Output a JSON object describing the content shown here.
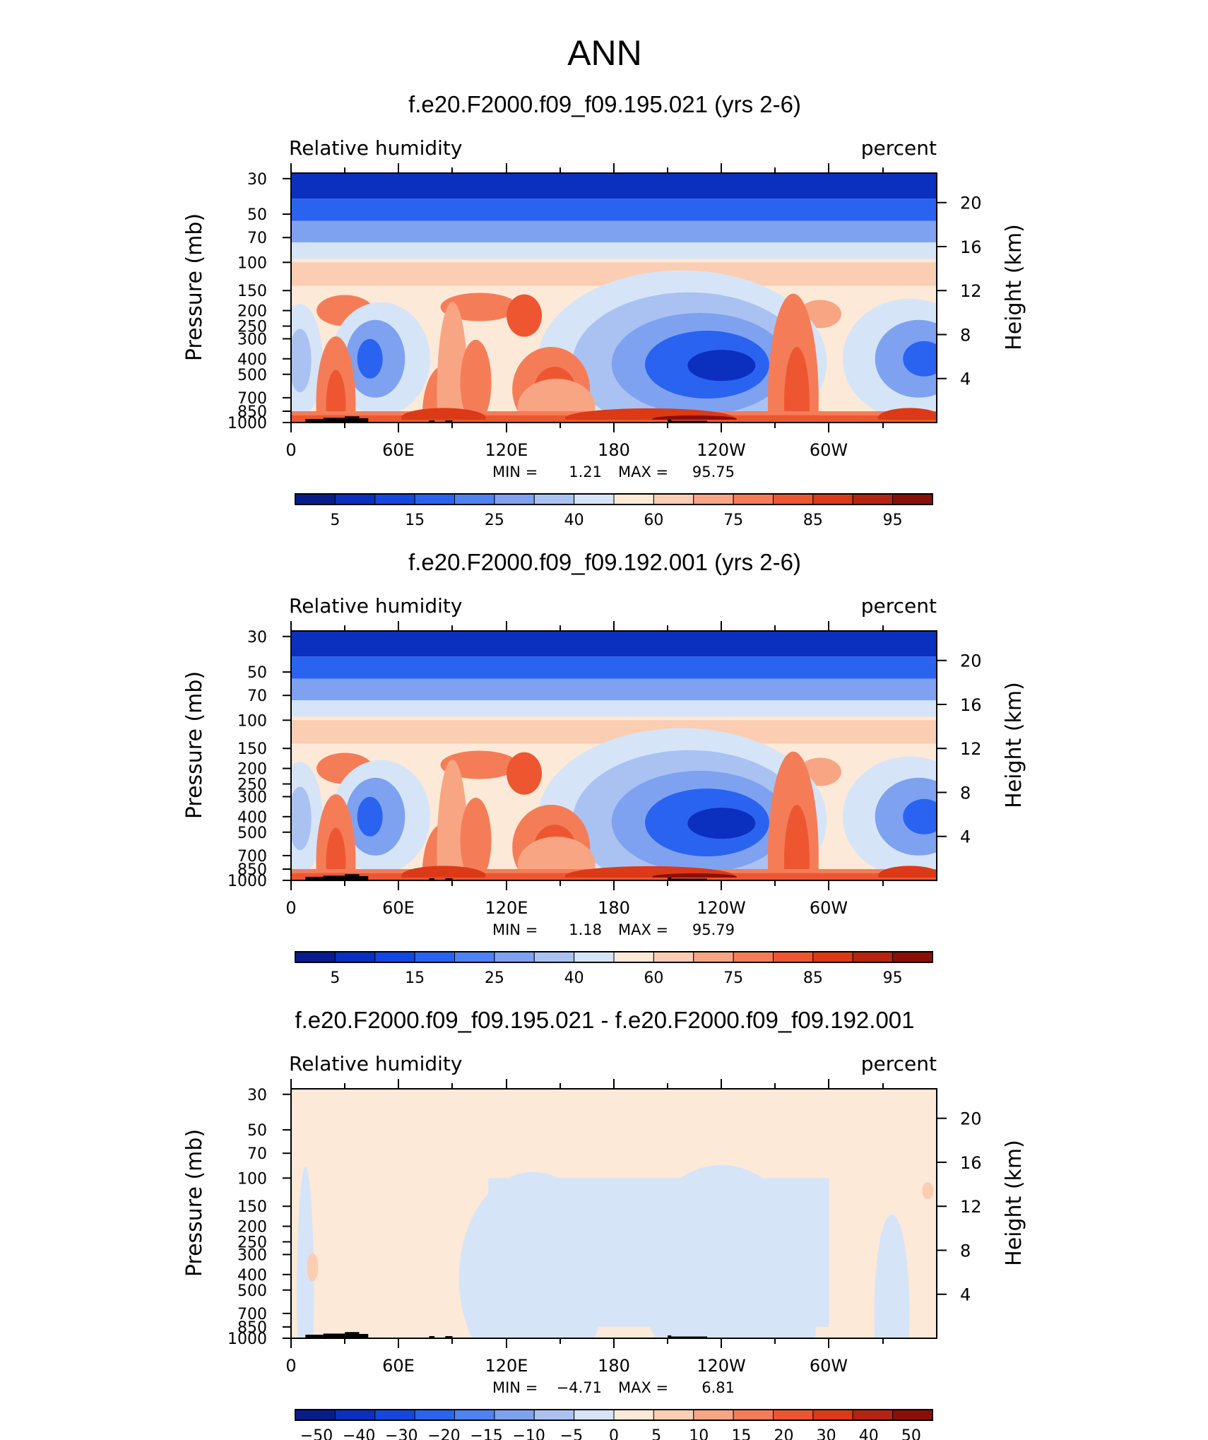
{
  "figure": {
    "title": "ANN"
  },
  "chart_data": [
    {
      "type": "heatmap",
      "title": "f.e20.F2000.f09_f09.195.021 (yrs 2-6)",
      "left_label": "Relative humidity",
      "right_label": "percent",
      "ylabel": "Pressure (mb)",
      "y2label": "Height (km)",
      "xticks": [
        "0",
        "60E",
        "120E",
        "180",
        "120W",
        "60W"
      ],
      "yticks": [
        "30",
        "50",
        "70",
        "100",
        "150",
        "200",
        "250",
        "300",
        "400",
        "500",
        "700",
        "850",
        "1000"
      ],
      "y2ticks": [
        "20",
        "16",
        "12",
        "8",
        "4"
      ],
      "y_range": [
        1000,
        30
      ],
      "stats_text": {
        "min_label": "MIN =",
        "min": "1.21",
        "max_label": "MAX =",
        "max": "95.75"
      },
      "min": 1.21,
      "max": 95.75,
      "colorbar": {
        "labels": [
          "5",
          "15",
          "25",
          "40",
          "60",
          "75",
          "85",
          "95"
        ],
        "colors": [
          "#081d8c",
          "#0b2fbf",
          "#1447e0",
          "#2a63f0",
          "#4f82f2",
          "#7ea2f0",
          "#a9c2f2",
          "#d6e4f8",
          "#fde9d8",
          "#fbcdb2",
          "#f8a583",
          "#f47d58",
          "#ee5632",
          "#dc3917",
          "#b42410",
          "#8a1007"
        ]
      }
    },
    {
      "type": "heatmap",
      "title": "f.e20.F2000.f09_f09.192.001 (yrs 2-6)",
      "left_label": "Relative humidity",
      "right_label": "percent",
      "ylabel": "Pressure (mb)",
      "y2label": "Height (km)",
      "xticks": [
        "0",
        "60E",
        "120E",
        "180",
        "120W",
        "60W"
      ],
      "yticks": [
        "30",
        "50",
        "70",
        "100",
        "150",
        "200",
        "250",
        "300",
        "400",
        "500",
        "700",
        "850",
        "1000"
      ],
      "y2ticks": [
        "20",
        "16",
        "12",
        "8",
        "4"
      ],
      "y_range": [
        1000,
        30
      ],
      "stats_text": {
        "min_label": "MIN =",
        "min": "1.18",
        "max_label": "MAX =",
        "max": "95.79"
      },
      "min": 1.18,
      "max": 95.79,
      "colorbar": {
        "labels": [
          "5",
          "15",
          "25",
          "40",
          "60",
          "75",
          "85",
          "95"
        ],
        "colors": [
          "#081d8c",
          "#0b2fbf",
          "#1447e0",
          "#2a63f0",
          "#4f82f2",
          "#7ea2f0",
          "#a9c2f2",
          "#d6e4f8",
          "#fde9d8",
          "#fbcdb2",
          "#f8a583",
          "#f47d58",
          "#ee5632",
          "#dc3917",
          "#b42410",
          "#8a1007"
        ]
      }
    },
    {
      "type": "heatmap",
      "title": "f.e20.F2000.f09_f09.195.021 - f.e20.F2000.f09_f09.192.001",
      "left_label": "Relative humidity",
      "right_label": "percent",
      "ylabel": "Pressure (mb)",
      "y2label": "Height (km)",
      "xticks": [
        "0",
        "60E",
        "120E",
        "180",
        "120W",
        "60W"
      ],
      "yticks": [
        "30",
        "50",
        "70",
        "100",
        "150",
        "200",
        "250",
        "300",
        "400",
        "500",
        "700",
        "850",
        "1000"
      ],
      "y2ticks": [
        "20",
        "16",
        "12",
        "8",
        "4"
      ],
      "y_range": [
        1000,
        30
      ],
      "stats_text": {
        "min_label": "MIN =",
        "min": "−4.71",
        "max_label": "MAX =",
        "max": "6.81"
      },
      "min": -4.71,
      "max": 6.81,
      "colorbar": {
        "labels": [
          "−50",
          "−40",
          "−30",
          "−20",
          "−15",
          "−10",
          "−5",
          "0",
          "5",
          "10",
          "15",
          "20",
          "30",
          "40",
          "50"
        ],
        "colors": [
          "#081d8c",
          "#0b2fbf",
          "#1447e0",
          "#2a63f0",
          "#4f82f2",
          "#7ea2f0",
          "#a9c2f2",
          "#d6e4f8",
          "#fde9d8",
          "#fbcdb2",
          "#f8a583",
          "#f47d58",
          "#ee5632",
          "#dc3917",
          "#b42410",
          "#8a1007"
        ]
      }
    }
  ]
}
